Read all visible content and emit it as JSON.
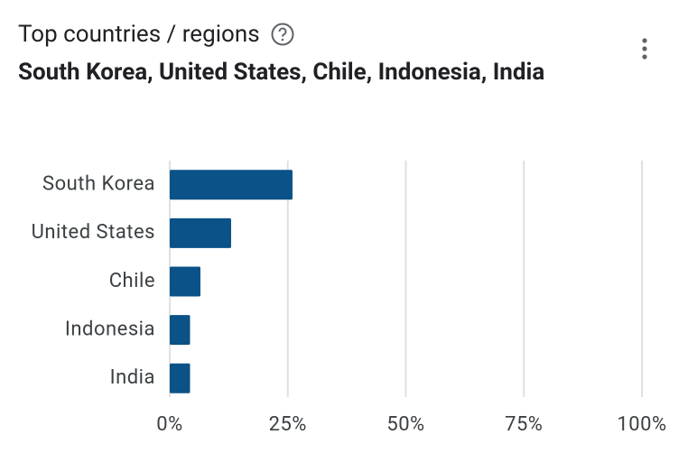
{
  "chart_data": {
    "type": "bar",
    "title": "Top countries / regions",
    "subtitle": "South Korea, United States, Chile, Indonesia, India",
    "categories": [
      "South Korea",
      "United States",
      "Chile",
      "Indonesia",
      "India"
    ],
    "values": [
      26,
      13,
      6.5,
      4.3,
      4.3
    ],
    "color": "#0a5287",
    "xlim": [
      0,
      100
    ],
    "xticks": [
      {
        "value": 0,
        "label": "0%"
      },
      {
        "value": 25,
        "label": "25%"
      },
      {
        "value": 50,
        "label": "50%"
      },
      {
        "value": 75,
        "label": "75%"
      },
      {
        "value": 100,
        "label": "100%"
      }
    ],
    "grid": true
  }
}
